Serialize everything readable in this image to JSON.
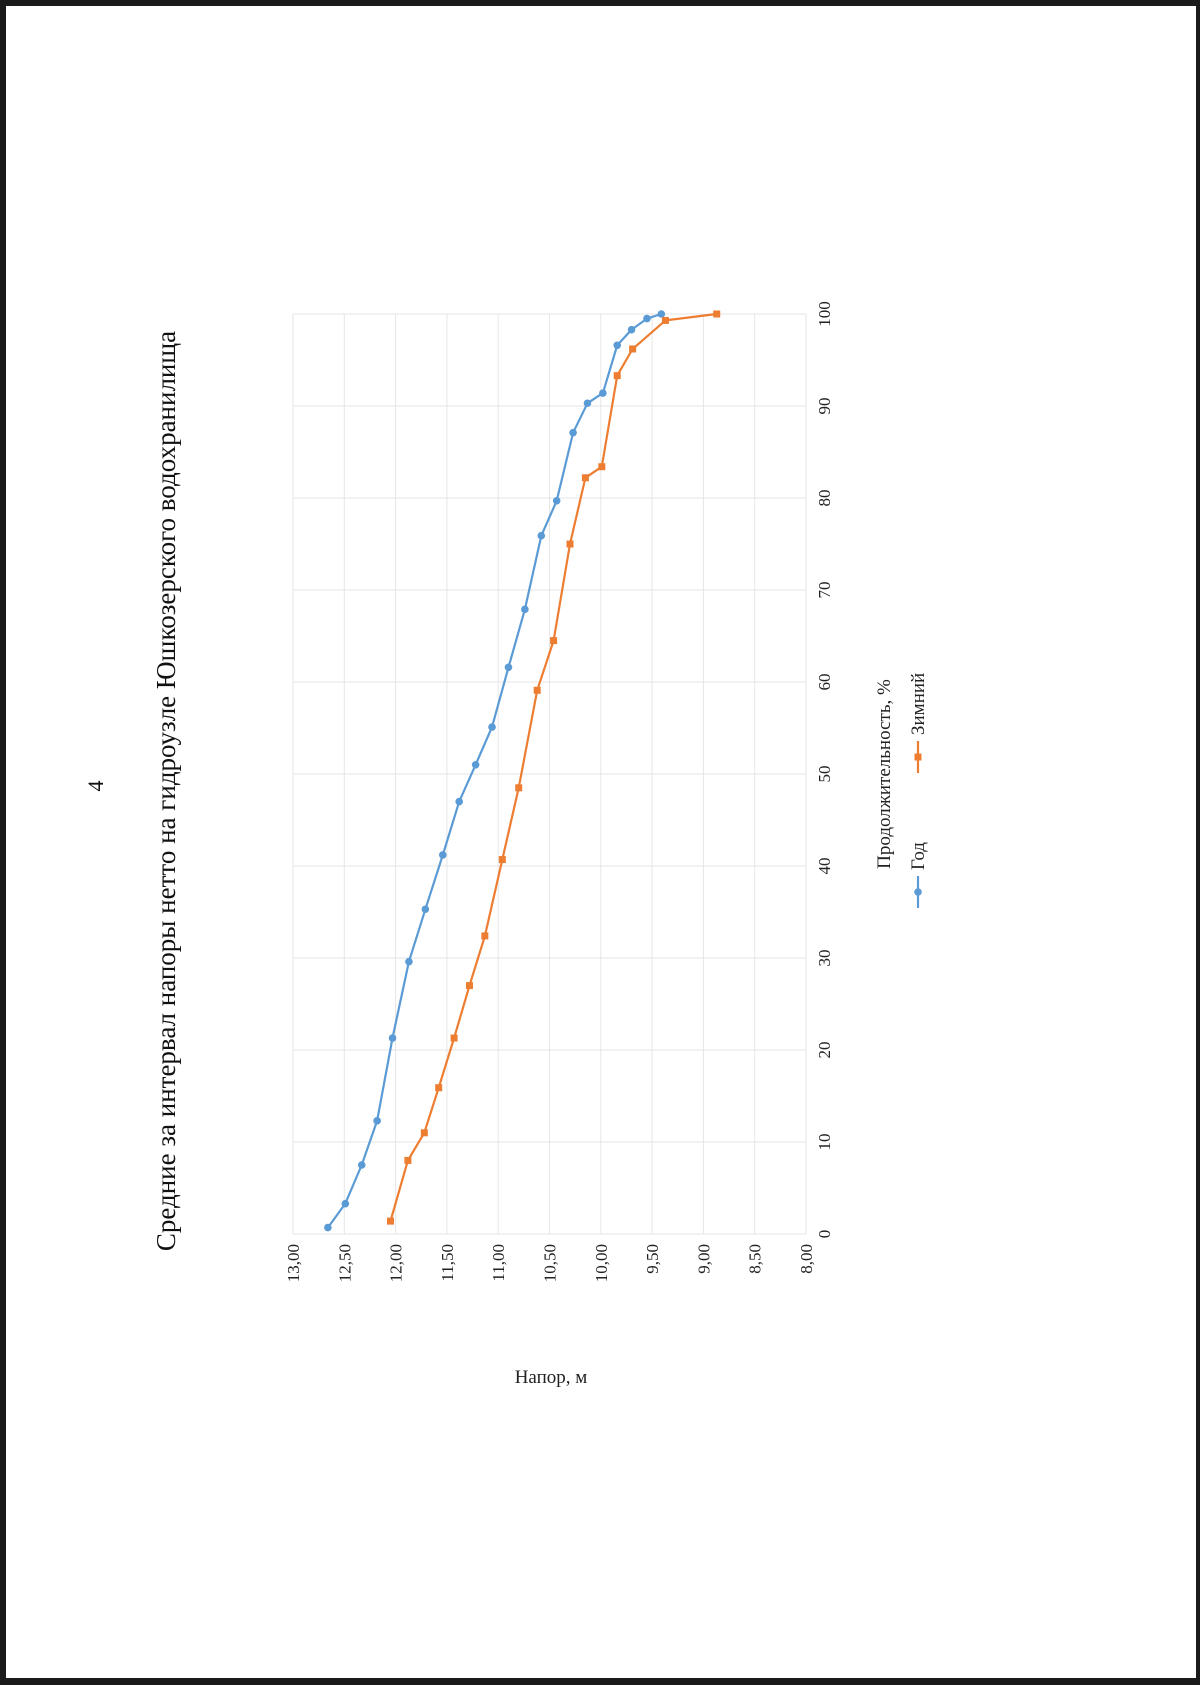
{
  "page": {
    "number": "4",
    "title": "Средние за интервал напоры нетто на гидроузле Юшкозерского водохранилища"
  },
  "chart_data": {
    "type": "line",
    "title": "Средние за интервал напоры нетто на гидроузле Юшкозерского водохранилища",
    "xlabel": "Продолжительность, %",
    "ylabel": "Напор, м",
    "xlim": [
      0,
      100
    ],
    "ylim": [
      8.0,
      13.0
    ],
    "x_ticks": [
      "0",
      "10",
      "20",
      "30",
      "40",
      "50",
      "60",
      "70",
      "80",
      "90",
      "100"
    ],
    "y_ticks": [
      "8,00",
      "8,50",
      "9,00",
      "9,50",
      "10,00",
      "10,50",
      "11,00",
      "11,50",
      "12,00",
      "12,50",
      "13,00"
    ],
    "grid": true,
    "legend": "bottom",
    "series": [
      {
        "name": "Год",
        "color": "#5b9bd5",
        "marker": "circle",
        "x": [
          0.7,
          3.3,
          7.5,
          12.3,
          21.3,
          29.6,
          35.3,
          41.2,
          47.0,
          51.0,
          55.1,
          61.6,
          67.9,
          75.9,
          79.7,
          87.1,
          90.3,
          91.4,
          96.6,
          98.3,
          99.5,
          100.0
        ],
        "y": [
          12.66,
          12.49,
          12.33,
          12.18,
          12.03,
          11.87,
          11.71,
          11.54,
          11.38,
          11.22,
          11.06,
          10.9,
          10.74,
          10.58,
          10.43,
          10.27,
          10.13,
          9.98,
          9.84,
          9.7,
          9.55,
          9.41
        ]
      },
      {
        "name": "Зимний",
        "color": "#ed7d31",
        "marker": "square",
        "x": [
          1.4,
          8.0,
          11.0,
          15.9,
          21.3,
          27.0,
          32.4,
          40.7,
          48.5,
          59.1,
          64.5,
          75.0,
          82.2,
          83.4,
          93.3,
          96.2,
          99.3,
          100.0
        ],
        "y": [
          12.05,
          11.88,
          11.72,
          11.58,
          11.43,
          11.28,
          11.13,
          10.96,
          10.8,
          10.62,
          10.46,
          10.3,
          10.15,
          9.99,
          9.84,
          9.69,
          9.37,
          8.87
        ]
      }
    ]
  }
}
